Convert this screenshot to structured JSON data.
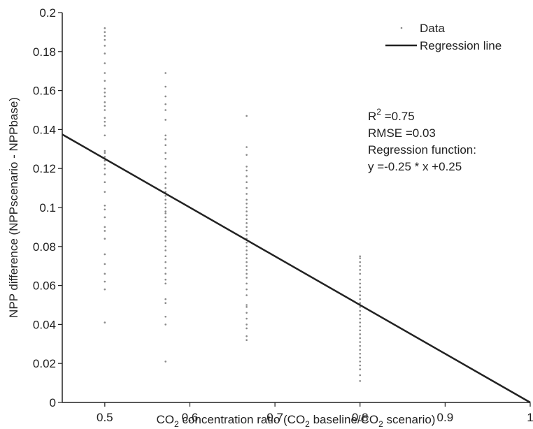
{
  "chart_data": {
    "type": "scatter",
    "xlabel_parts": [
      "CO",
      "2",
      " concentration ratio (CO",
      "2",
      " baseline/CO",
      "2",
      " scenario)"
    ],
    "ylabel": "NPP difference (NPPscenario - NPPbase)",
    "xlim": [
      0.45,
      1.0
    ],
    "ylim": [
      0,
      0.2
    ],
    "x_ticks": [
      0.5,
      0.6,
      0.7,
      0.8,
      0.9,
      1.0
    ],
    "x_tick_labels": [
      "0.5",
      "0.6",
      "0.7",
      "0.8",
      "0.9",
      "1"
    ],
    "y_ticks": [
      0,
      0.02,
      0.04,
      0.06,
      0.08,
      0.1,
      0.12,
      0.14,
      0.16,
      0.18,
      0.2
    ],
    "y_tick_labels": [
      "0",
      "0.02",
      "0.04",
      "0.06",
      "0.08",
      "0.1",
      "0.12",
      "0.14",
      "0.16",
      "0.18",
      "0.2"
    ],
    "grid": false,
    "legend_position": "top-right",
    "legend": {
      "data_label": "Data",
      "line_label": "Regression line"
    },
    "colors": {
      "points": "#888888",
      "line": "#222222"
    },
    "series": [
      {
        "name": "Data",
        "type": "scatter",
        "points": [
          [
            0.5,
            0.041
          ],
          [
            0.5,
            0.058
          ],
          [
            0.5,
            0.062
          ],
          [
            0.5,
            0.066
          ],
          [
            0.5,
            0.071
          ],
          [
            0.5,
            0.076
          ],
          [
            0.5,
            0.084
          ],
          [
            0.5,
            0.088
          ],
          [
            0.5,
            0.09
          ],
          [
            0.5,
            0.095
          ],
          [
            0.5,
            0.099
          ],
          [
            0.5,
            0.101
          ],
          [
            0.5,
            0.108
          ],
          [
            0.5,
            0.113
          ],
          [
            0.5,
            0.117
          ],
          [
            0.5,
            0.12
          ],
          [
            0.5,
            0.122
          ],
          [
            0.5,
            0.124
          ],
          [
            0.5,
            0.126
          ],
          [
            0.5,
            0.128
          ],
          [
            0.5,
            0.129
          ],
          [
            0.5,
            0.137
          ],
          [
            0.5,
            0.142
          ],
          [
            0.5,
            0.144
          ],
          [
            0.5,
            0.146
          ],
          [
            0.5,
            0.15
          ],
          [
            0.5,
            0.152
          ],
          [
            0.5,
            0.154
          ],
          [
            0.5,
            0.157
          ],
          [
            0.5,
            0.159
          ],
          [
            0.5,
            0.161
          ],
          [
            0.5,
            0.165
          ],
          [
            0.5,
            0.169
          ],
          [
            0.5,
            0.174
          ],
          [
            0.5,
            0.179
          ],
          [
            0.5,
            0.183
          ],
          [
            0.5,
            0.186
          ],
          [
            0.5,
            0.188
          ],
          [
            0.5,
            0.19
          ],
          [
            0.5,
            0.192
          ],
          [
            0.5714,
            0.021
          ],
          [
            0.5714,
            0.04
          ],
          [
            0.5714,
            0.044
          ],
          [
            0.5714,
            0.051
          ],
          [
            0.5714,
            0.053
          ],
          [
            0.5714,
            0.061
          ],
          [
            0.5714,
            0.063
          ],
          [
            0.5714,
            0.066
          ],
          [
            0.5714,
            0.069
          ],
          [
            0.5714,
            0.072
          ],
          [
            0.5714,
            0.075
          ],
          [
            0.5714,
            0.078
          ],
          [
            0.5714,
            0.08
          ],
          [
            0.5714,
            0.083
          ],
          [
            0.5714,
            0.085
          ],
          [
            0.5714,
            0.088
          ],
          [
            0.5714,
            0.09
          ],
          [
            0.5714,
            0.093
          ],
          [
            0.5714,
            0.095
          ],
          [
            0.5714,
            0.097
          ],
          [
            0.5714,
            0.098
          ],
          [
            0.5714,
            0.1
          ],
          [
            0.5714,
            0.102
          ],
          [
            0.5714,
            0.104
          ],
          [
            0.5714,
            0.106
          ],
          [
            0.5714,
            0.108
          ],
          [
            0.5714,
            0.11
          ],
          [
            0.5714,
            0.112
          ],
          [
            0.5714,
            0.115
          ],
          [
            0.5714,
            0.118
          ],
          [
            0.5714,
            0.121
          ],
          [
            0.5714,
            0.125
          ],
          [
            0.5714,
            0.128
          ],
          [
            0.5714,
            0.132
          ],
          [
            0.5714,
            0.135
          ],
          [
            0.5714,
            0.137
          ],
          [
            0.5714,
            0.145
          ],
          [
            0.5714,
            0.15
          ],
          [
            0.5714,
            0.153
          ],
          [
            0.5714,
            0.157
          ],
          [
            0.5714,
            0.162
          ],
          [
            0.5714,
            0.169
          ],
          [
            0.6667,
            0.032
          ],
          [
            0.6667,
            0.034
          ],
          [
            0.6667,
            0.038
          ],
          [
            0.6667,
            0.04
          ],
          [
            0.6667,
            0.043
          ],
          [
            0.6667,
            0.046
          ],
          [
            0.6667,
            0.049
          ],
          [
            0.6667,
            0.05
          ],
          [
            0.6667,
            0.055
          ],
          [
            0.6667,
            0.058
          ],
          [
            0.6667,
            0.061
          ],
          [
            0.6667,
            0.064
          ],
          [
            0.6667,
            0.066
          ],
          [
            0.6667,
            0.068
          ],
          [
            0.6667,
            0.07
          ],
          [
            0.6667,
            0.072
          ],
          [
            0.6667,
            0.074
          ],
          [
            0.6667,
            0.076
          ],
          [
            0.6667,
            0.078
          ],
          [
            0.6667,
            0.08
          ],
          [
            0.6667,
            0.082
          ],
          [
            0.6667,
            0.084
          ],
          [
            0.6667,
            0.086
          ],
          [
            0.6667,
            0.088
          ],
          [
            0.6667,
            0.09
          ],
          [
            0.6667,
            0.092
          ],
          [
            0.6667,
            0.094
          ],
          [
            0.6667,
            0.096
          ],
          [
            0.6667,
            0.098
          ],
          [
            0.6667,
            0.1
          ],
          [
            0.6667,
            0.102
          ],
          [
            0.6667,
            0.104
          ],
          [
            0.6667,
            0.107
          ],
          [
            0.6667,
            0.11
          ],
          [
            0.6667,
            0.113
          ],
          [
            0.6667,
            0.116
          ],
          [
            0.6667,
            0.119
          ],
          [
            0.6667,
            0.121
          ],
          [
            0.6667,
            0.127
          ],
          [
            0.6667,
            0.131
          ],
          [
            0.6667,
            0.147
          ],
          [
            0.8,
            0.011
          ],
          [
            0.8,
            0.014
          ],
          [
            0.8,
            0.017
          ],
          [
            0.8,
            0.019
          ],
          [
            0.8,
            0.021
          ],
          [
            0.8,
            0.023
          ],
          [
            0.8,
            0.025
          ],
          [
            0.8,
            0.027
          ],
          [
            0.8,
            0.029
          ],
          [
            0.8,
            0.031
          ],
          [
            0.8,
            0.033
          ],
          [
            0.8,
            0.035
          ],
          [
            0.8,
            0.037
          ],
          [
            0.8,
            0.039
          ],
          [
            0.8,
            0.041
          ],
          [
            0.8,
            0.043
          ],
          [
            0.8,
            0.045
          ],
          [
            0.8,
            0.047
          ],
          [
            0.8,
            0.049
          ],
          [
            0.8,
            0.051
          ],
          [
            0.8,
            0.053
          ],
          [
            0.8,
            0.055
          ],
          [
            0.8,
            0.057
          ],
          [
            0.8,
            0.059
          ],
          [
            0.8,
            0.061
          ],
          [
            0.8,
            0.063
          ],
          [
            0.8,
            0.066
          ],
          [
            0.8,
            0.068
          ],
          [
            0.8,
            0.07
          ],
          [
            0.8,
            0.072
          ],
          [
            0.8,
            0.074
          ],
          [
            0.8,
            0.075
          ]
        ]
      },
      {
        "name": "Regression line",
        "type": "line",
        "x": [
          0.45,
          1.0
        ],
        "y": [
          0.1375,
          0.0
        ]
      }
    ],
    "annotations": {
      "r2_base": "R",
      "r2_sup": "2",
      "r2_value": " =0.75",
      "rmse": "RMSE =0.03",
      "function_label": "Regression function:",
      "equation": "y =-0.25 * x +0.25"
    }
  }
}
